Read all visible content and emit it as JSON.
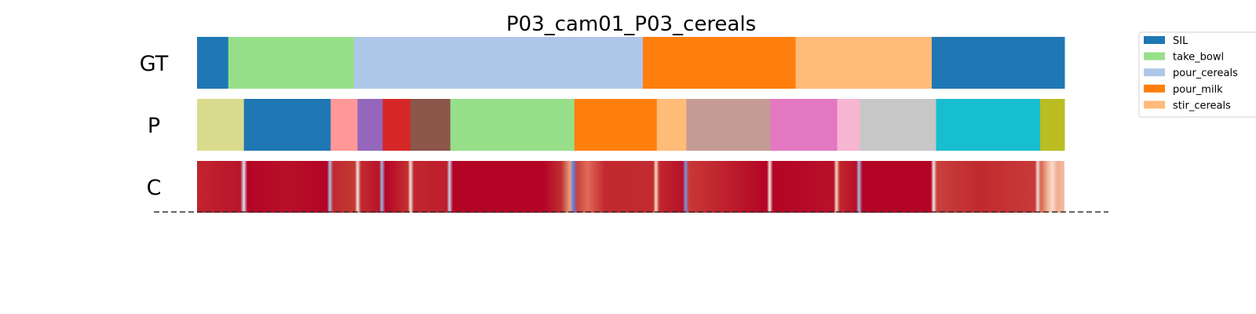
{
  "chart_data": {
    "type": "segmentation",
    "title": "P03_cam01_P03_cereals",
    "x_range": [
      0,
      1
    ],
    "rows": [
      {
        "name": "GT",
        "segments": [
          {
            "start": 0.0,
            "end": 0.036,
            "color": "#1f77b4"
          },
          {
            "start": 0.036,
            "end": 0.181,
            "color": "#98df8a"
          },
          {
            "start": 0.181,
            "end": 0.514,
            "color": "#aec7e8"
          },
          {
            "start": 0.514,
            "end": 0.69,
            "color": "#ff7f0e"
          },
          {
            "start": 0.69,
            "end": 0.847,
            "color": "#ffbb78"
          },
          {
            "start": 0.847,
            "end": 1.0,
            "color": "#1f77b4"
          }
        ]
      },
      {
        "name": "P",
        "segments": [
          {
            "start": 0.0,
            "end": 0.054,
            "color": "#dbdb8d"
          },
          {
            "start": 0.054,
            "end": 0.154,
            "color": "#1f77b4"
          },
          {
            "start": 0.154,
            "end": 0.185,
            "color": "#ff9896"
          },
          {
            "start": 0.185,
            "end": 0.214,
            "color": "#9467bd"
          },
          {
            "start": 0.214,
            "end": 0.246,
            "color": "#d62728"
          },
          {
            "start": 0.246,
            "end": 0.292,
            "color": "#8c564b"
          },
          {
            "start": 0.292,
            "end": 0.435,
            "color": "#98df8a"
          },
          {
            "start": 0.435,
            "end": 0.53,
            "color": "#ff7f0e"
          },
          {
            "start": 0.53,
            "end": 0.564,
            "color": "#ffbb78"
          },
          {
            "start": 0.564,
            "end": 0.661,
            "color": "#c49c94"
          },
          {
            "start": 0.661,
            "end": 0.738,
            "color": "#e377c2"
          },
          {
            "start": 0.738,
            "end": 0.764,
            "color": "#f7b6d2"
          },
          {
            "start": 0.764,
            "end": 0.852,
            "color": "#c7c7c7"
          },
          {
            "start": 0.852,
            "end": 0.972,
            "color": "#17becf"
          },
          {
            "start": 0.972,
            "end": 1.0,
            "color": "#bcbd22"
          }
        ]
      },
      {
        "name": "C",
        "base_color": "#b40426",
        "gradient_stops": [
          {
            "offset": 0.0,
            "color": "#c0242d"
          },
          {
            "offset": 0.05,
            "color": "#b9152b"
          },
          {
            "offset": 0.054,
            "color": "#dce3f0"
          },
          {
            "offset": 0.058,
            "color": "#b40426"
          },
          {
            "offset": 0.1,
            "color": "#b81029"
          },
          {
            "offset": 0.15,
            "color": "#b40426"
          },
          {
            "offset": 0.153,
            "color": "#a8c0e8"
          },
          {
            "offset": 0.157,
            "color": "#c0282f"
          },
          {
            "offset": 0.182,
            "color": "#c33a33"
          },
          {
            "offset": 0.185,
            "color": "#f0e6e0"
          },
          {
            "offset": 0.189,
            "color": "#c02a2f"
          },
          {
            "offset": 0.21,
            "color": "#b91429"
          },
          {
            "offset": 0.213,
            "color": "#9db6e4"
          },
          {
            "offset": 0.217,
            "color": "#b40426"
          },
          {
            "offset": 0.243,
            "color": "#c3302f"
          },
          {
            "offset": 0.246,
            "color": "#f2e4d9"
          },
          {
            "offset": 0.25,
            "color": "#c02730"
          },
          {
            "offset": 0.288,
            "color": "#bd1e2d"
          },
          {
            "offset": 0.291,
            "color": "#c8d4ee"
          },
          {
            "offset": 0.295,
            "color": "#b40426"
          },
          {
            "offset": 0.4,
            "color": "#b40426"
          },
          {
            "offset": 0.42,
            "color": "#c0302f"
          },
          {
            "offset": 0.43,
            "color": "#e9a080"
          },
          {
            "offset": 0.434,
            "color": "#5b7fe0"
          },
          {
            "offset": 0.438,
            "color": "#c84040"
          },
          {
            "offset": 0.45,
            "color": "#e06a58"
          },
          {
            "offset": 0.47,
            "color": "#c22a30"
          },
          {
            "offset": 0.526,
            "color": "#c22b30"
          },
          {
            "offset": 0.529,
            "color": "#fbe0c8"
          },
          {
            "offset": 0.533,
            "color": "#c0282e"
          },
          {
            "offset": 0.56,
            "color": "#b81029"
          },
          {
            "offset": 0.563,
            "color": "#7a93e0"
          },
          {
            "offset": 0.567,
            "color": "#c83836"
          },
          {
            "offset": 0.6,
            "color": "#c0262e"
          },
          {
            "offset": 0.657,
            "color": "#b40426"
          },
          {
            "offset": 0.66,
            "color": "#f4ebe2"
          },
          {
            "offset": 0.664,
            "color": "#b40426"
          },
          {
            "offset": 0.734,
            "color": "#b8102a"
          },
          {
            "offset": 0.737,
            "color": "#f6d8c4"
          },
          {
            "offset": 0.741,
            "color": "#c0272e"
          },
          {
            "offset": 0.76,
            "color": "#b81028"
          },
          {
            "offset": 0.763,
            "color": "#a8bee8"
          },
          {
            "offset": 0.767,
            "color": "#b40426"
          },
          {
            "offset": 0.846,
            "color": "#b40426"
          },
          {
            "offset": 0.849,
            "color": "#ece8e2"
          },
          {
            "offset": 0.853,
            "color": "#c8403c"
          },
          {
            "offset": 0.9,
            "color": "#c02a2f"
          },
          {
            "offset": 0.966,
            "color": "#c83a38"
          },
          {
            "offset": 0.969,
            "color": "#e8dcd8"
          },
          {
            "offset": 0.973,
            "color": "#d8624d"
          },
          {
            "offset": 0.98,
            "color": "#eeb092"
          },
          {
            "offset": 0.986,
            "color": "#fadccc"
          },
          {
            "offset": 0.992,
            "color": "#f2aa90"
          },
          {
            "offset": 1.0,
            "color": "#f6bfa4"
          }
        ]
      }
    ],
    "legend": {
      "placement": "top-right, outside plot (clipped)",
      "entries": [
        {
          "label": "SIL",
          "color": "#1f77b4"
        },
        {
          "label": "take_bowl",
          "color": "#98df8a"
        },
        {
          "label": "pour_cereals",
          "color": "#aec7e8"
        },
        {
          "label": "pour_milk",
          "color": "#ff7f0e"
        },
        {
          "label": "stir_cereals",
          "color": "#ffbb78"
        }
      ]
    },
    "baseline": {
      "style": "dashed",
      "color": "#333333"
    }
  }
}
